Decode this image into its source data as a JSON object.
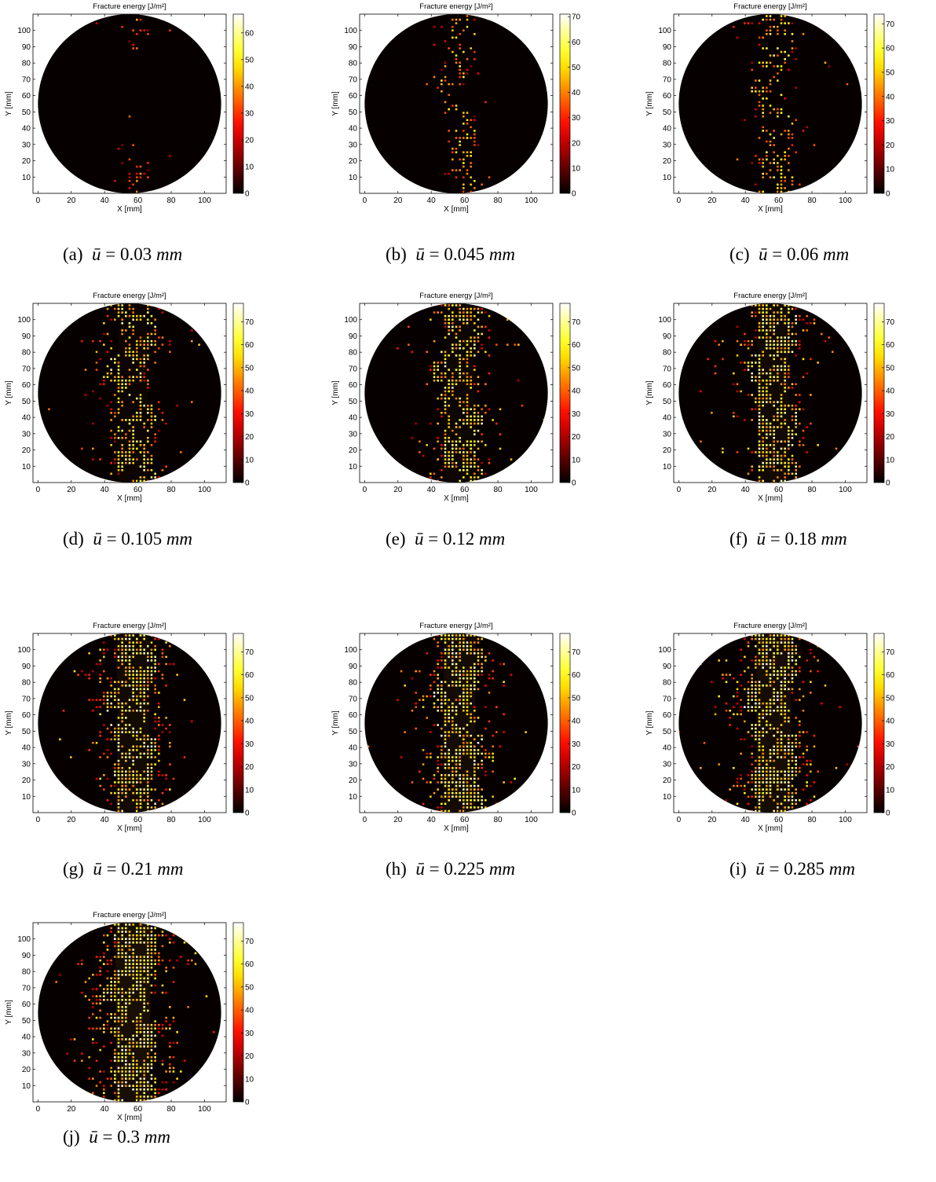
{
  "figure": {
    "panels": [
      {
        "id": "a",
        "label": "(a)",
        "u_text": "0.03",
        "unit": "mm",
        "cmax": 67,
        "cticks": [
          0,
          10,
          20,
          30,
          40,
          50,
          60
        ],
        "density": 0.1,
        "band": 4,
        "spread": 10
      },
      {
        "id": "b",
        "label": "(b)",
        "u_text": "0.045",
        "unit": "mm",
        "cmax": 71,
        "cticks": [
          0,
          10,
          20,
          30,
          40,
          50,
          60,
          70
        ],
        "density": 0.3,
        "band": 7,
        "spread": 12
      },
      {
        "id": "c",
        "label": "(c)",
        "u_text": "0.06",
        "unit": "mm",
        "cmax": 74,
        "cticks": [
          0,
          10,
          20,
          30,
          40,
          50,
          60,
          70
        ],
        "density": 0.42,
        "band": 9,
        "spread": 15
      },
      {
        "id": "d",
        "label": "(d)",
        "u_text": "0.105",
        "unit": "mm",
        "cmax": 78,
        "cticks": [
          0,
          10,
          20,
          30,
          40,
          50,
          60,
          70
        ],
        "density": 0.55,
        "band": 11,
        "spread": 20
      },
      {
        "id": "e",
        "label": "(e)",
        "u_text": "0.12",
        "unit": "mm",
        "cmax": 78,
        "cticks": [
          0,
          10,
          20,
          30,
          40,
          50,
          60,
          70
        ],
        "density": 0.58,
        "band": 11,
        "spread": 21
      },
      {
        "id": "f",
        "label": "(f)",
        "u_text": "0.18",
        "unit": "mm",
        "cmax": 78,
        "cticks": [
          0,
          10,
          20,
          30,
          40,
          50,
          60,
          70
        ],
        "density": 0.63,
        "band": 12,
        "spread": 23
      },
      {
        "id": "g",
        "label": "(g)",
        "u_text": "0.21",
        "unit": "mm",
        "cmax": 78,
        "cticks": [
          0,
          10,
          20,
          30,
          40,
          50,
          60,
          70
        ],
        "density": 0.66,
        "band": 12,
        "spread": 26
      },
      {
        "id": "h",
        "label": "(h)",
        "u_text": "0.225",
        "unit": "mm",
        "cmax": 78,
        "cticks": [
          0,
          10,
          20,
          30,
          40,
          50,
          60,
          70
        ],
        "density": 0.67,
        "band": 12,
        "spread": 27
      },
      {
        "id": "i",
        "label": "(i)",
        "u_text": "0.285",
        "unit": "mm",
        "cmax": 78,
        "cticks": [
          0,
          10,
          20,
          30,
          40,
          50,
          60,
          70
        ],
        "density": 0.7,
        "band": 13,
        "spread": 28
      },
      {
        "id": "j",
        "label": "(j)",
        "u_text": "0.3",
        "unit": "mm",
        "cmax": 78,
        "cticks": [
          0,
          10,
          20,
          30,
          40,
          50,
          60,
          70
        ],
        "density": 0.73,
        "band": 13,
        "spread": 30
      }
    ]
  },
  "chart_data": {
    "type": "heatmap",
    "title": "Fracture energy [J/m²]",
    "xlabel": "X [mm]",
    "ylabel": "Y [mm]",
    "xlim": [
      -3,
      113
    ],
    "ylim": [
      0,
      110
    ],
    "xticks": [
      0,
      20,
      40,
      60,
      80,
      100
    ],
    "yticks": [
      10,
      20,
      30,
      40,
      50,
      60,
      70,
      80,
      90,
      100
    ],
    "colormap": "hot",
    "colorbar": "right",
    "domain": {
      "shape": "circle",
      "center_x": 55,
      "center_y": 55,
      "radius": 55
    },
    "crack_band_center_x": 57,
    "pores_xy_mm": [
      [
        62,
        93
      ],
      [
        53,
        73
      ],
      [
        44,
        58
      ],
      [
        66,
        52
      ],
      [
        54,
        44
      ],
      [
        40,
        28
      ],
      [
        62,
        30
      ],
      [
        72,
        18
      ],
      [
        54,
        4
      ],
      [
        58,
        57
      ],
      [
        48,
        85
      ]
    ],
    "series": [
      {
        "panel": "a",
        "u_bar_mm": 0.03,
        "colorbar_max": 67
      },
      {
        "panel": "b",
        "u_bar_mm": 0.045,
        "colorbar_max": 71
      },
      {
        "panel": "c",
        "u_bar_mm": 0.06,
        "colorbar_max": 74
      },
      {
        "panel": "d",
        "u_bar_mm": 0.105,
        "colorbar_max": 78
      },
      {
        "panel": "e",
        "u_bar_mm": 0.12,
        "colorbar_max": 78
      },
      {
        "panel": "f",
        "u_bar_mm": 0.18,
        "colorbar_max": 78
      },
      {
        "panel": "g",
        "u_bar_mm": 0.21,
        "colorbar_max": 78
      },
      {
        "panel": "h",
        "u_bar_mm": 0.225,
        "colorbar_max": 78
      },
      {
        "panel": "i",
        "u_bar_mm": 0.285,
        "colorbar_max": 78
      },
      {
        "panel": "j",
        "u_bar_mm": 0.3,
        "colorbar_max": 78
      }
    ]
  }
}
